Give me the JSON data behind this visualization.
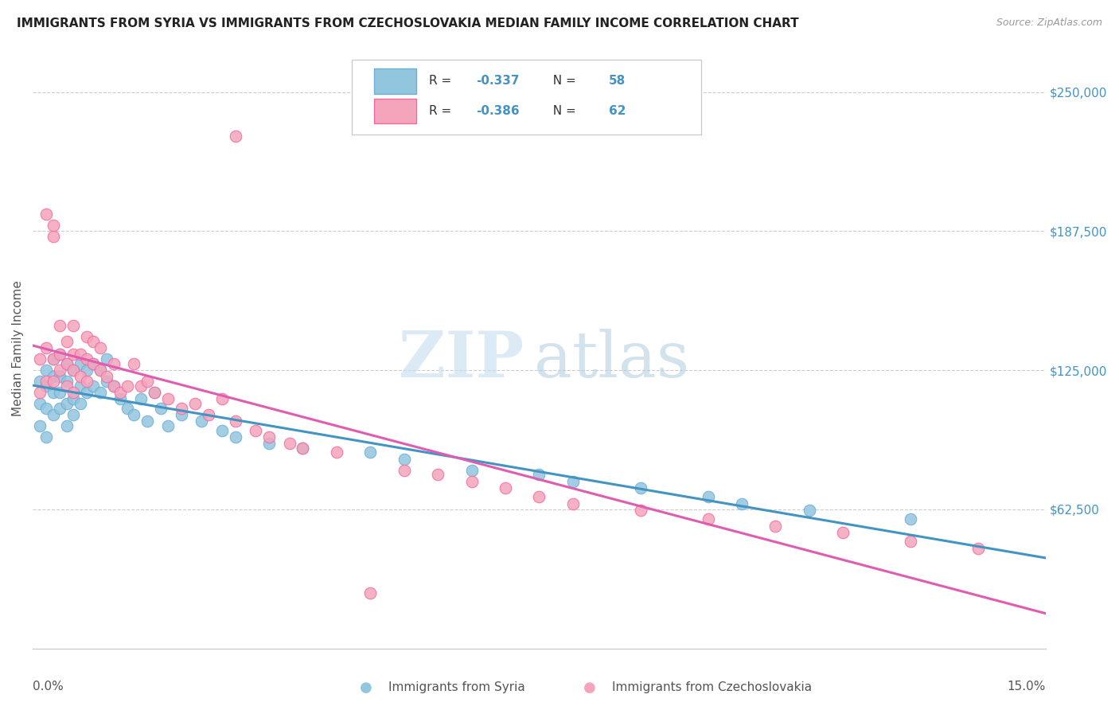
{
  "title": "IMMIGRANTS FROM SYRIA VS IMMIGRANTS FROM CZECHOSLOVAKIA MEDIAN FAMILY INCOME CORRELATION CHART",
  "source": "Source: ZipAtlas.com",
  "ylabel": "Median Family Income",
  "watermark_zip": "ZIP",
  "watermark_atlas": "atlas",
  "color_syria": "#92c5de",
  "color_syria_edge": "#6baed6",
  "color_czech": "#f4a5bb",
  "color_czech_edge": "#f768a1",
  "color_syria_line": "#4393c3",
  "color_czech_line": "#e05cb0",
  "xlim": [
    0.0,
    0.15
  ],
  "ylim": [
    0.0,
    270000
  ],
  "yticks": [
    62500,
    125000,
    187500,
    250000
  ],
  "ytick_labels": [
    "$62,500",
    "$125,000",
    "$187,500",
    "$250,000"
  ],
  "legend_r1": "-0.337",
  "legend_n1": "58",
  "legend_r2": "-0.386",
  "legend_n2": "62",
  "syria_x": [
    0.001,
    0.001,
    0.001,
    0.002,
    0.002,
    0.002,
    0.002,
    0.003,
    0.003,
    0.003,
    0.003,
    0.004,
    0.004,
    0.004,
    0.004,
    0.005,
    0.005,
    0.005,
    0.005,
    0.006,
    0.006,
    0.006,
    0.007,
    0.007,
    0.007,
    0.008,
    0.008,
    0.009,
    0.009,
    0.01,
    0.01,
    0.011,
    0.011,
    0.012,
    0.013,
    0.014,
    0.015,
    0.016,
    0.017,
    0.018,
    0.019,
    0.02,
    0.022,
    0.025,
    0.028,
    0.03,
    0.035,
    0.04,
    0.05,
    0.055,
    0.065,
    0.075,
    0.08,
    0.09,
    0.1,
    0.105,
    0.115,
    0.13
  ],
  "syria_y": [
    100000,
    110000,
    120000,
    95000,
    108000,
    118000,
    125000,
    105000,
    115000,
    122000,
    130000,
    108000,
    115000,
    122000,
    132000,
    100000,
    110000,
    120000,
    128000,
    105000,
    112000,
    125000,
    110000,
    118000,
    128000,
    115000,
    125000,
    118000,
    128000,
    115000,
    125000,
    120000,
    130000,
    118000,
    112000,
    108000,
    105000,
    112000,
    102000,
    115000,
    108000,
    100000,
    105000,
    102000,
    98000,
    95000,
    92000,
    90000,
    88000,
    85000,
    80000,
    78000,
    75000,
    72000,
    68000,
    65000,
    62000,
    58000
  ],
  "czech_x": [
    0.001,
    0.001,
    0.002,
    0.002,
    0.002,
    0.003,
    0.003,
    0.003,
    0.003,
    0.004,
    0.004,
    0.004,
    0.005,
    0.005,
    0.005,
    0.006,
    0.006,
    0.006,
    0.006,
    0.007,
    0.007,
    0.008,
    0.008,
    0.008,
    0.009,
    0.009,
    0.01,
    0.01,
    0.011,
    0.012,
    0.012,
    0.013,
    0.014,
    0.015,
    0.016,
    0.017,
    0.018,
    0.02,
    0.022,
    0.024,
    0.026,
    0.028,
    0.03,
    0.033,
    0.035,
    0.038,
    0.04,
    0.045,
    0.055,
    0.06,
    0.065,
    0.07,
    0.075,
    0.08,
    0.09,
    0.1,
    0.11,
    0.12,
    0.13,
    0.14,
    0.03,
    0.05
  ],
  "czech_y": [
    115000,
    130000,
    120000,
    195000,
    135000,
    130000,
    185000,
    190000,
    120000,
    125000,
    132000,
    145000,
    118000,
    128000,
    138000,
    115000,
    125000,
    132000,
    145000,
    122000,
    132000,
    120000,
    130000,
    140000,
    128000,
    138000,
    125000,
    135000,
    122000,
    118000,
    128000,
    115000,
    118000,
    128000,
    118000,
    120000,
    115000,
    112000,
    108000,
    110000,
    105000,
    112000,
    102000,
    98000,
    95000,
    92000,
    90000,
    88000,
    80000,
    78000,
    75000,
    72000,
    68000,
    65000,
    62000,
    58000,
    55000,
    52000,
    48000,
    45000,
    230000,
    25000
  ]
}
